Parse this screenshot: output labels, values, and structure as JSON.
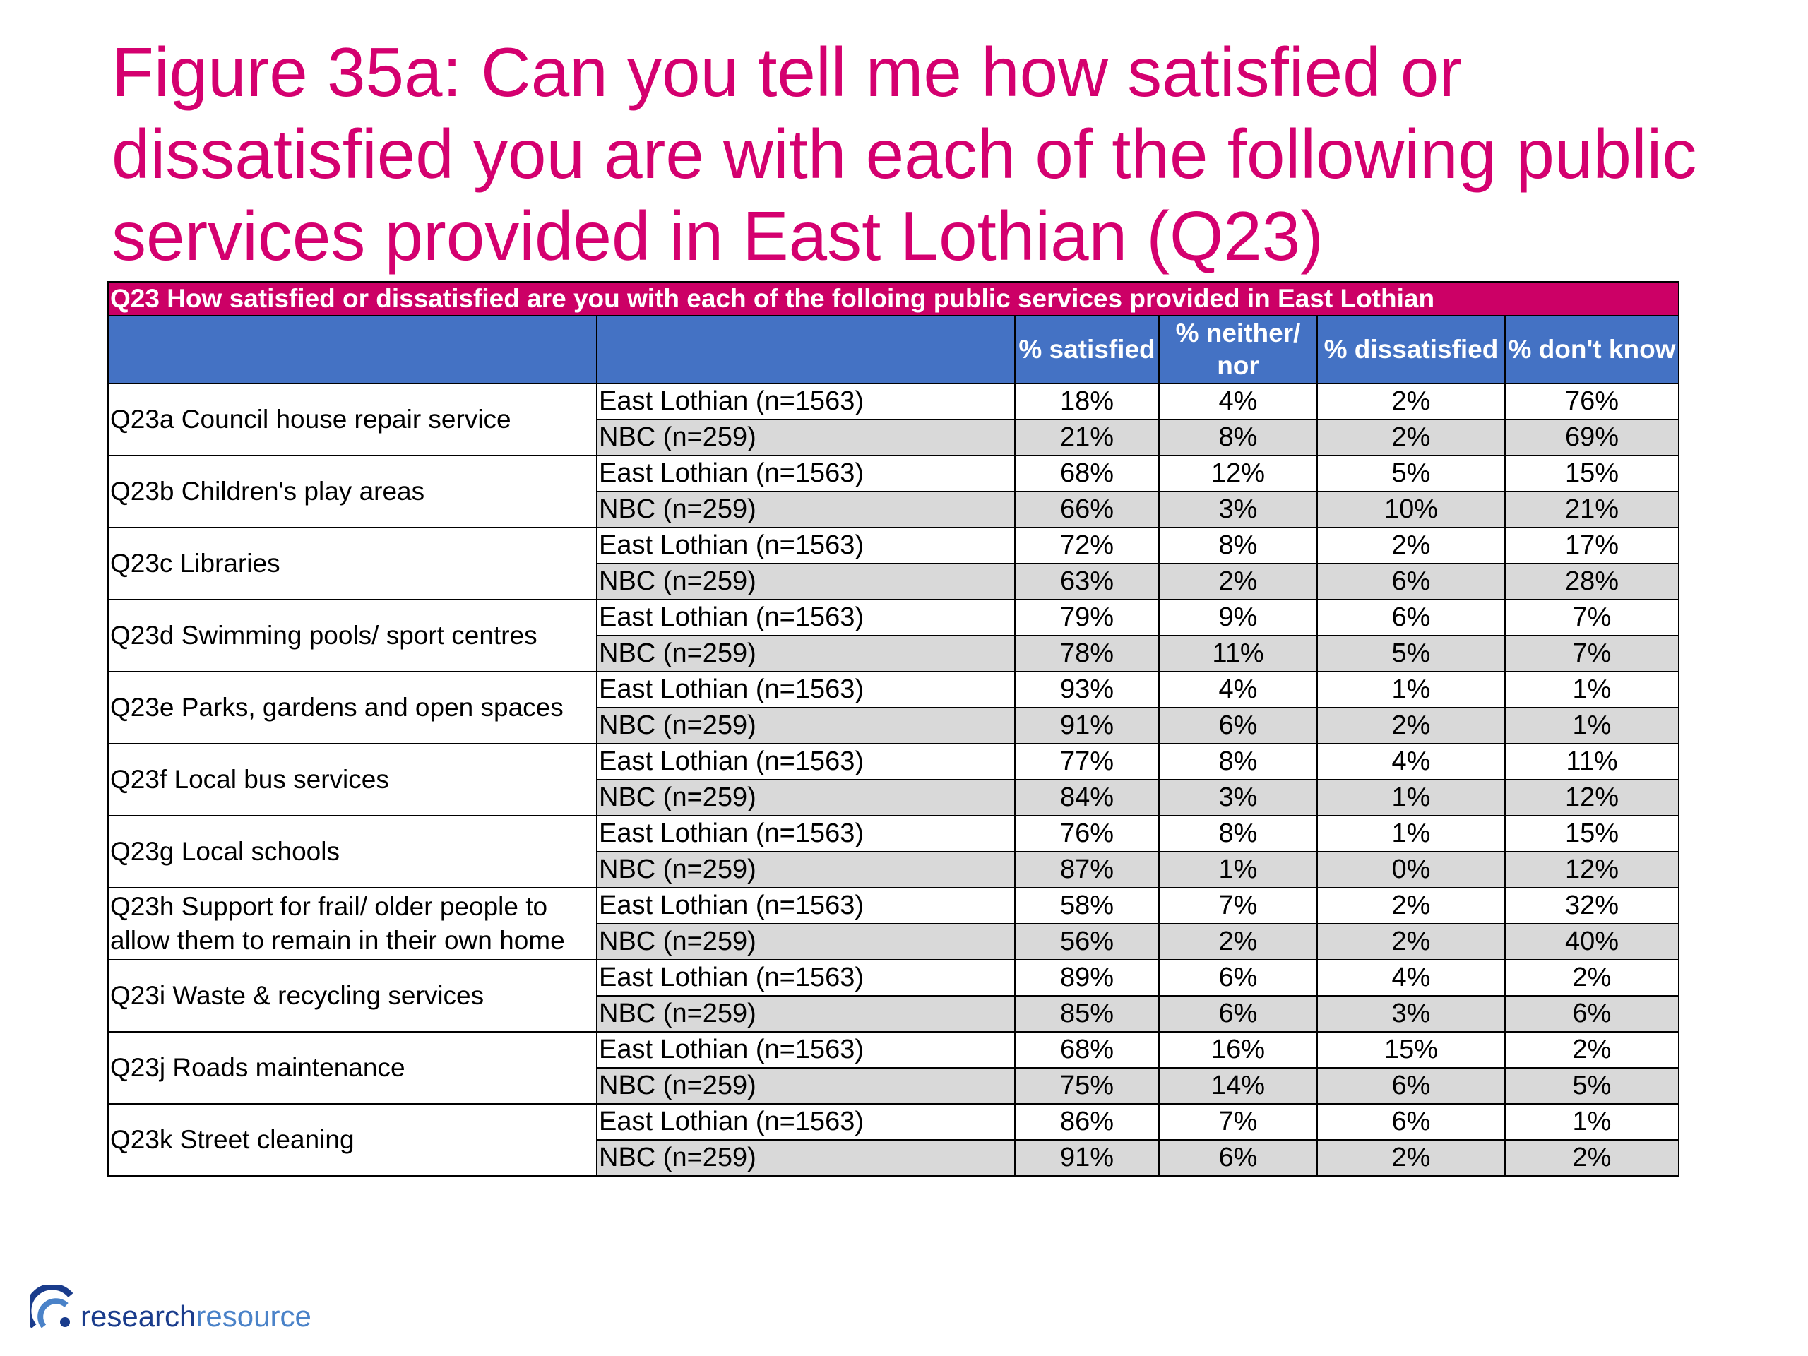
{
  "title": "Figure 35a: Can you tell me how satisfied or dissatisfied you are with each of the following public services provided in East Lothian (Q23)",
  "table": {
    "caption": "Q23 How satisfied or dissatisfied are you with each of the folloing public services provided in East Lothian",
    "headers": [
      "",
      "",
      "% satisfied",
      "% neither/ nor",
      "% dissatisfied",
      "% don't know"
    ],
    "rows": [
      {
        "service": "Q23a Council house repair service",
        "groups": [
          {
            "label": "East Lothian (n=1563)",
            "values": [
              "18%",
              "4%",
              "2%",
              "76%"
            ]
          },
          {
            "label": "NBC (n=259)",
            "values": [
              "21%",
              "8%",
              "2%",
              "69%"
            ]
          }
        ]
      },
      {
        "service": "Q23b Children's play areas",
        "groups": [
          {
            "label": "East Lothian (n=1563)",
            "values": [
              "68%",
              "12%",
              "5%",
              "15%"
            ]
          },
          {
            "label": "NBC (n=259)",
            "values": [
              "66%",
              "3%",
              "10%",
              "21%"
            ]
          }
        ]
      },
      {
        "service": "Q23c Libraries",
        "groups": [
          {
            "label": "East Lothian (n=1563)",
            "values": [
              "72%",
              "8%",
              "2%",
              "17%"
            ]
          },
          {
            "label": "NBC (n=259)",
            "values": [
              "63%",
              "2%",
              "6%",
              "28%"
            ]
          }
        ]
      },
      {
        "service": "Q23d Swimming pools/ sport centres",
        "groups": [
          {
            "label": "East Lothian (n=1563)",
            "values": [
              "79%",
              "9%",
              "6%",
              "7%"
            ]
          },
          {
            "label": "NBC (n=259)",
            "values": [
              "78%",
              "11%",
              "5%",
              "7%"
            ]
          }
        ]
      },
      {
        "service": "Q23e Parks, gardens and open spaces",
        "groups": [
          {
            "label": "East Lothian (n=1563)",
            "values": [
              "93%",
              "4%",
              "1%",
              "1%"
            ]
          },
          {
            "label": "NBC (n=259)",
            "values": [
              "91%",
              "6%",
              "2%",
              "1%"
            ]
          }
        ]
      },
      {
        "service": "Q23f Local bus services",
        "groups": [
          {
            "label": "East Lothian (n=1563)",
            "values": [
              "77%",
              "8%",
              "4%",
              "11%"
            ]
          },
          {
            "label": "NBC (n=259)",
            "values": [
              "84%",
              "3%",
              "1%",
              "12%"
            ]
          }
        ]
      },
      {
        "service": "Q23g Local schools",
        "groups": [
          {
            "label": "East Lothian (n=1563)",
            "values": [
              "76%",
              "8%",
              "1%",
              "15%"
            ]
          },
          {
            "label": "NBC (n=259)",
            "values": [
              "87%",
              "1%",
              "0%",
              "12%"
            ]
          }
        ]
      },
      {
        "service": "Q23h Support for frail/ older people to allow them to remain in their own home",
        "groups": [
          {
            "label": "East Lothian (n=1563)",
            "values": [
              "58%",
              "7%",
              "2%",
              "32%"
            ]
          },
          {
            "label": "NBC (n=259)",
            "values": [
              "56%",
              "2%",
              "2%",
              "40%"
            ]
          }
        ]
      },
      {
        "service": "Q23i Waste & recycling services",
        "groups": [
          {
            "label": "East Lothian (n=1563)",
            "values": [
              "89%",
              "6%",
              "4%",
              "2%"
            ]
          },
          {
            "label": "NBC (n=259)",
            "values": [
              "85%",
              "6%",
              "3%",
              "6%"
            ]
          }
        ]
      },
      {
        "service": "Q23j Roads maintenance",
        "groups": [
          {
            "label": "East Lothian (n=1563)",
            "values": [
              "68%",
              "16%",
              "15%",
              "2%"
            ]
          },
          {
            "label": "NBC (n=259)",
            "values": [
              "75%",
              "14%",
              "6%",
              "5%"
            ]
          }
        ]
      },
      {
        "service": "Q23k Street cleaning",
        "groups": [
          {
            "label": "East Lothian (n=1563)",
            "values": [
              "86%",
              "7%",
              "6%",
              "1%"
            ]
          },
          {
            "label": "NBC (n=259)",
            "values": [
              "91%",
              "6%",
              "2%",
              "2%"
            ]
          }
        ]
      }
    ]
  },
  "logo": {
    "part1": "research",
    "part2": "resource",
    "icon": "research-resource-arc-icon"
  },
  "colors": {
    "title": "#d4006f",
    "caption_bg": "#cc0066",
    "header_bg": "#4472c4",
    "alt_row_bg": "#d9d9d9"
  }
}
